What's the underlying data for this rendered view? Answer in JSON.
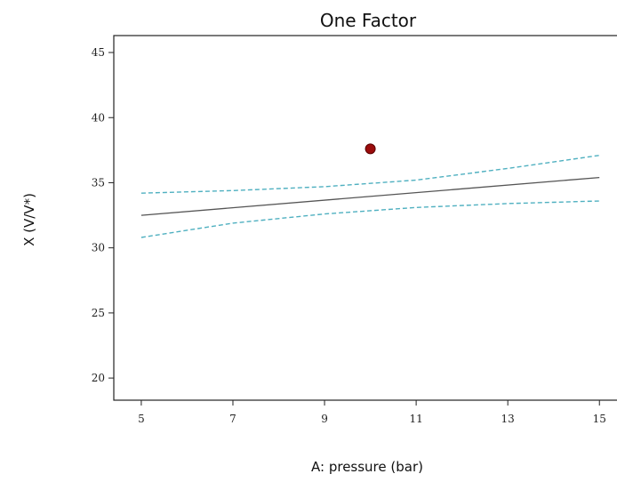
{
  "chart_data": {
    "type": "line",
    "title": "One Factor",
    "xlabel": "A: pressure (bar)",
    "ylabel": "X (V/V*)",
    "xlim": [
      4.4,
      15.5
    ],
    "ylim": [
      18.3,
      46.3
    ],
    "xticks": [
      5,
      7,
      9,
      11,
      13,
      15
    ],
    "yticks": [
      20,
      25,
      30,
      35,
      40,
      45
    ],
    "grid": false,
    "legend": "none",
    "series": [
      {
        "style": "solid",
        "color": "#555555",
        "x": [
          5,
          15
        ],
        "y": [
          32.5,
          35.4
        ]
      },
      {
        "style": "dashed",
        "color": "#4fb0c0",
        "x": [
          5,
          7,
          9,
          11,
          13,
          15
        ],
        "y": [
          34.2,
          34.4,
          34.7,
          35.2,
          36.1,
          37.1
        ]
      },
      {
        "style": "dashed",
        "color": "#4fb0c0",
        "x": [
          5,
          7,
          9,
          11,
          13,
          15
        ],
        "y": [
          30.8,
          31.9,
          32.6,
          33.1,
          33.4,
          33.6
        ]
      }
    ],
    "points": [
      {
        "x": 10,
        "y": 37.6,
        "color": "#9b0c0c"
      }
    ]
  }
}
